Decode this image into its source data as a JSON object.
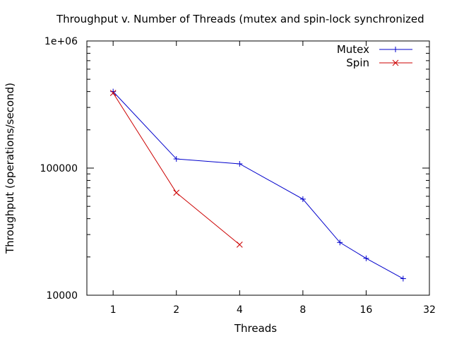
{
  "chart_data": {
    "type": "line",
    "title": "Throughput v. Number of Threads (mutex and spin-lock synchronized",
    "xlabel": "Threads",
    "ylabel": "Throughput (operations/second)",
    "x_scale": "log2",
    "y_scale": "log10",
    "xlim": [
      0.75,
      32
    ],
    "ylim": [
      10000,
      1000000
    ],
    "x_ticks": [
      1,
      2,
      4,
      8,
      16,
      32
    ],
    "x_tick_labels": [
      "1",
      "2",
      "4",
      "8",
      "16",
      "32"
    ],
    "y_ticks": [
      10000,
      100000,
      1000000
    ],
    "y_tick_labels": [
      "10000",
      "100000",
      "1e+06"
    ],
    "grid": false,
    "legend_position": "top-right",
    "series": [
      {
        "name": "Mutex",
        "color": "#0000cc",
        "marker": "plus",
        "x": [
          1,
          2,
          4,
          8,
          12,
          16,
          24
        ],
        "y": [
          400000,
          118000,
          108000,
          57000,
          26000,
          19500,
          13500
        ]
      },
      {
        "name": "Spin",
        "color": "#cc0000",
        "marker": "cross",
        "x": [
          1,
          2,
          4
        ],
        "y": [
          390000,
          64000,
          25000
        ]
      }
    ]
  }
}
